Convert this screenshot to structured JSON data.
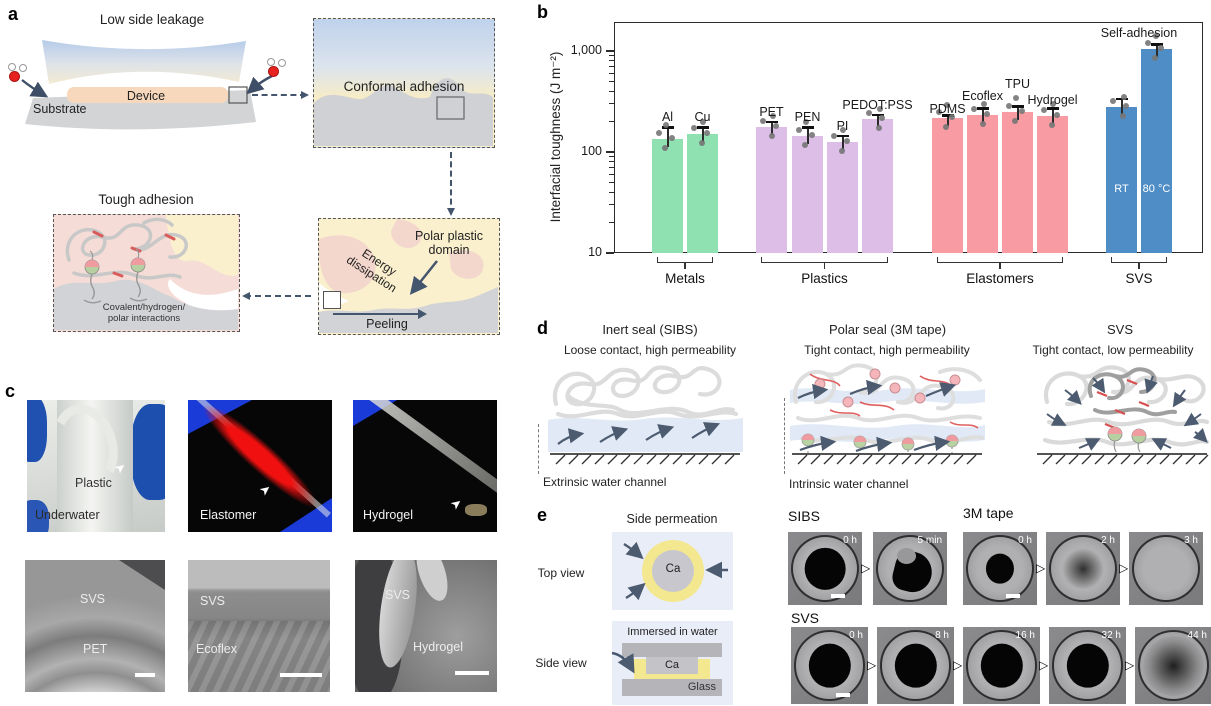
{
  "panels": {
    "a": {
      "label": "a",
      "title_top": "Low side leakage",
      "device_label": "Device",
      "substrate_label": "Substrate",
      "conformal_title": "Conformal adhesion",
      "tough_title": "Tough adhesion",
      "interactions_line1": "Covalent/hydrogen/",
      "interactions_line2": "polar interactions",
      "polar_line1": "Polar plastic",
      "polar_line2": "domain",
      "energy_line1": "Energy",
      "energy_line2": "dissipation",
      "peeling_label": "Peeling"
    },
    "b": {
      "label": "b"
    },
    "c": {
      "label": "c",
      "photos": [
        {
          "main_label": "Plastic",
          "corner_label": "Underwater"
        },
        {
          "main_label": "Elastomer"
        },
        {
          "main_label": "Hydrogel"
        }
      ],
      "sems": [
        {
          "top_label": "SVS",
          "bottom_label": "PET"
        },
        {
          "top_label": "SVS",
          "bottom_label": "Ecoflex"
        },
        {
          "top_label": "SVS",
          "bottom_label": "Hydrogel"
        }
      ]
    },
    "d": {
      "label": "d",
      "columns": [
        {
          "title": "Inert seal (SIBS)",
          "subtitle": "Loose contact, high permeability",
          "channel_label": "Extrinsic water channel"
        },
        {
          "title": "Polar seal (3M tape)",
          "subtitle": "Tight contact, high permeability",
          "channel_label": "Intrinsic water channel"
        },
        {
          "title": "SVS",
          "subtitle": "Tight contact, low permeability"
        }
      ]
    },
    "e": {
      "label": "e",
      "diagram": {
        "title": "Side permeation",
        "top_view_label": "Top view",
        "side_view_label": "Side view",
        "ca_label": "Ca",
        "immersed_label": "Immersed in water",
        "glass_label": "Glass"
      },
      "series": [
        {
          "name": "SIBS",
          "frames": [
            {
              "time": "0 h",
              "spot": "large",
              "scalebar": true
            },
            {
              "time": "5 min",
              "spot": "eaten"
            }
          ]
        },
        {
          "name": "3M tape",
          "frames": [
            {
              "time": "0 h",
              "spot": "small",
              "scalebar": true
            },
            {
              "time": "2 h",
              "spot": "faded"
            },
            {
              "time": "3 h",
              "spot": "none"
            }
          ]
        },
        {
          "name": "SVS",
          "frames": [
            {
              "time": "0 h",
              "spot": "large",
              "scalebar": true
            },
            {
              "time": "8 h",
              "spot": "large"
            },
            {
              "time": "16 h",
              "spot": "large"
            },
            {
              "time": "32 h",
              "spot": "large"
            },
            {
              "time": "44 h",
              "spot": "faded-large"
            }
          ]
        }
      ]
    }
  },
  "chart_data": {
    "type": "bar",
    "title": "",
    "ylabel": "Interfacial toughness (J m⁻²)",
    "xlabel": "",
    "yscale": "log",
    "ylim": [
      10,
      2000
    ],
    "yticks": [
      10,
      100,
      1000
    ],
    "ytick_labels": [
      "10",
      "100",
      "1,000"
    ],
    "legend": "none",
    "annotation": "Self-adhesion",
    "groups": [
      {
        "name": "Metals",
        "color": "#90e1b2",
        "bars": [
          {
            "label": "Al",
            "value": 135,
            "err": 40
          },
          {
            "label": "Cu",
            "value": 150,
            "err": 25
          }
        ]
      },
      {
        "name": "Plastics",
        "color": "#dcbee6",
        "bars": [
          {
            "label": "PET",
            "value": 175,
            "err": 25
          },
          {
            "label": "PEN",
            "value": 145,
            "err": 30
          },
          {
            "label": "PI",
            "value": 125,
            "err": 20
          },
          {
            "label": "PEDOT:PSS",
            "value": 210,
            "err": 25
          }
        ]
      },
      {
        "name": "Elastomers",
        "color": "#f89ba2",
        "bars": [
          {
            "label": "PDMS",
            "value": 215,
            "err": 15
          },
          {
            "label": "Ecoflex",
            "value": 235,
            "err": 35
          },
          {
            "label": "TPU",
            "value": 250,
            "err": 35
          },
          {
            "label": "Hydrogel",
            "value": 225,
            "err": 45
          }
        ]
      },
      {
        "name": "SVS",
        "color": "#4e8dc6",
        "bars": [
          {
            "label": "RT",
            "value": 280,
            "err": 55,
            "inside": true
          },
          {
            "label": "80 °C",
            "value": 1040,
            "err": 130,
            "inside": true
          }
        ]
      }
    ]
  }
}
